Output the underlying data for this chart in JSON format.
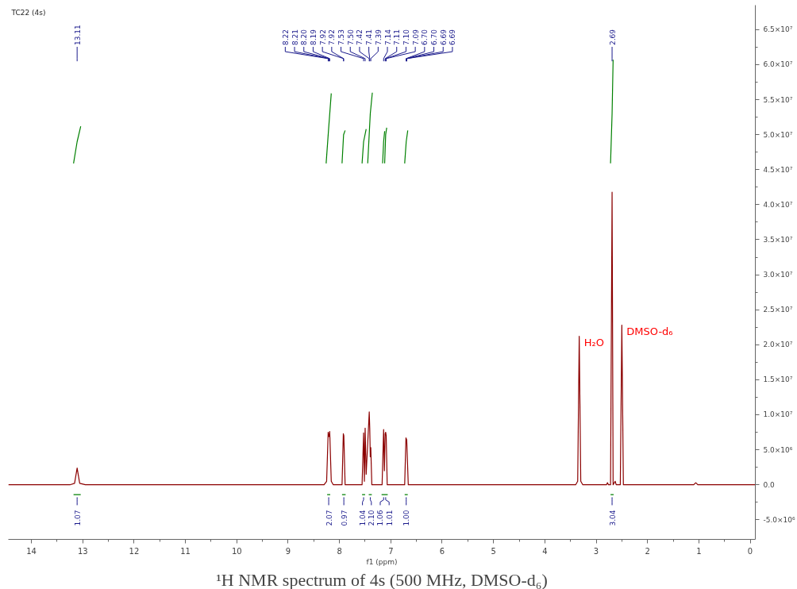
{
  "chart_data": {
    "type": "line",
    "title": "TC22 (4s)",
    "xlabel": "f1 (ppm)",
    "xlim": [
      14.45,
      -0.1
    ],
    "xticks": [
      14,
      13,
      12,
      11,
      10,
      9,
      8,
      7,
      6,
      5,
      4,
      3,
      2,
      1,
      0
    ],
    "ylim": [
      -7800000.0,
      68500000.0
    ],
    "yticks": [
      {
        "value": -5000000.0,
        "label": "-5.0×10⁶"
      },
      {
        "value": 0,
        "label": "0.0"
      },
      {
        "value": 5000000.0,
        "label": "5.0×10⁶"
      },
      {
        "value": 10000000.0,
        "label": "1.0×10⁷"
      },
      {
        "value": 15000000.0,
        "label": "1.5×10⁷"
      },
      {
        "value": 20000000.0,
        "label": "2.0×10⁷"
      },
      {
        "value": 25000000.0,
        "label": "2.5×10⁷"
      },
      {
        "value": 30000000.0,
        "label": "3.0×10⁷"
      },
      {
        "value": 35000000.0,
        "label": "3.5×10⁷"
      },
      {
        "value": 40000000.0,
        "label": "4.0×10⁷"
      },
      {
        "value": 45000000.0,
        "label": "4.5×10⁷"
      },
      {
        "value": 50000000.0,
        "label": "5.0×10⁷"
      },
      {
        "value": 55000000.0,
        "label": "5.5×10⁷"
      },
      {
        "value": 60000000.0,
        "label": "6.0×10⁷"
      },
      {
        "value": 65000000.0,
        "label": "6.5×10⁷"
      }
    ],
    "grid": false,
    "line_style": "solid",
    "series": [
      {
        "color": "#8b0000",
        "x": [
          14.45,
          13.25,
          13.16,
          13.11,
          13.06,
          12.95,
          8.3,
          8.25,
          8.22,
          8.21,
          8.2,
          8.19,
          8.16,
          8.12,
          7.95,
          7.925,
          7.915,
          7.89,
          7.56,
          7.53,
          7.515,
          7.5,
          7.48,
          7.42,
          7.41,
          7.4,
          7.39,
          7.37,
          7.17,
          7.14,
          7.125,
          7.11,
          7.1,
          7.09,
          7.07,
          6.73,
          6.705,
          6.7,
          6.695,
          6.69,
          6.66,
          3.4,
          3.36,
          3.33,
          3.3,
          3.26,
          2.8,
          2.78,
          2.76,
          2.72,
          2.69,
          2.67,
          2.63,
          2.61,
          2.53,
          2.5,
          2.47,
          2.4,
          1.1,
          1.06,
          1.02,
          -0.1
        ],
        "values": [
          0,
          0,
          200000.0,
          2400000.0,
          200000.0,
          0,
          0,
          500000.0,
          7500000.0,
          6900000.0,
          6900000.0,
          7600000.0,
          500000.0,
          0,
          0,
          7300000.0,
          7000000.0,
          0,
          0,
          7400000.0,
          500000.0,
          8100000.0,
          1500000.0,
          10400000.0,
          8000000.0,
          4000000.0,
          5300000.0,
          0,
          0,
          7900000.0,
          2000000.0,
          7300000.0,
          7500000.0,
          7000000.0,
          0,
          0,
          6700000.0,
          6600000.0,
          6500000.0,
          6400000.0,
          0,
          0,
          500000.0,
          21200000.0,
          500000.0,
          0,
          0,
          300000.0,
          0,
          0,
          41800000.0,
          0,
          500000.0,
          0,
          0,
          22800000.0,
          0,
          0,
          0,
          300000.0,
          0,
          0
        ]
      },
      {
        "color": "#008000",
        "x": [
          13.18,
          13.11,
          13.04,
          null,
          8.26,
          8.21,
          8.16,
          null,
          7.95,
          7.92,
          7.89,
          null,
          7.56,
          7.53,
          7.48,
          null,
          7.45,
          7.4,
          7.36,
          null,
          7.16,
          7.14,
          7.12,
          null,
          7.12,
          7.1,
          7.08,
          null,
          6.73,
          6.7,
          6.67,
          null,
          2.72,
          2.69,
          2.67
        ],
        "values": [
          45900000.0,
          49000000.0,
          51200000.0,
          null,
          45900000.0,
          51000000.0,
          55900000.0,
          null,
          45900000.0,
          50000000.0,
          50600000.0,
          null,
          45900000.0,
          49000000.0,
          50800000.0,
          null,
          45900000.0,
          53000000.0,
          56000000.0,
          null,
          45900000.0,
          49000000.0,
          50500000.0,
          null,
          45900000.0,
          50000000.0,
          51000000.0,
          null,
          45900000.0,
          49000000.0,
          50600000.0,
          null,
          45900000.0,
          53000000.0,
          60700000.0
        ]
      },
      {
        "color": "#008000",
        "x": [
          13.18,
          13.11,
          13.04,
          null,
          8.24,
          8.21,
          8.18,
          null,
          7.95,
          7.915,
          7.88,
          null,
          7.56,
          7.53,
          7.5,
          null,
          7.43,
          7.4,
          7.37,
          null,
          7.18,
          7.14,
          7.1,
          7.06,
          null,
          6.73,
          6.7,
          6.67,
          null,
          2.72,
          2.69,
          2.66
        ],
        "values": [
          -1400000.0,
          -1400000.0,
          -1400000.0,
          null,
          -1400000.0,
          -1400000.0,
          -1400000.0,
          null,
          -1400000.0,
          -1400000.0,
          -1400000.0,
          null,
          -1400000.0,
          -1400000.0,
          -1400000.0,
          null,
          -1400000.0,
          -1400000.0,
          -1400000.0,
          null,
          -1400000.0,
          -1400000.0,
          -1400000.0,
          -1400000.0,
          null,
          -1400000.0,
          -1400000.0,
          -1400000.0,
          null,
          -1400000.0,
          -1400000.0,
          -1400000.0
        ]
      }
    ],
    "annotations": [
      "13.11",
      "8.22",
      "8.21",
      "8.20",
      "8.19",
      "7.92",
      "7.92",
      "7.53",
      "7.50",
      "7.42",
      "7.41",
      "7.39",
      "7.14",
      "7.11",
      "7.10",
      "7.09",
      "6.70",
      "6.70",
      "6.69",
      "6.69",
      "2.69",
      {
        "text": "1.07",
        "x": 13.11,
        "y": -1400000.0
      },
      {
        "text": "2.07",
        "x": 8.21,
        "y": -1400000.0
      },
      {
        "text": "0.97",
        "x": 7.915,
        "y": -1400000.0
      },
      {
        "text": "1.04",
        "x": 7.53,
        "y": -1400000.0
      },
      {
        "text": "2.10",
        "x": 7.4,
        "y": -1400000.0
      },
      {
        "text": "1.06",
        "x": 7.14,
        "y": -1400000.0
      },
      {
        "text": "1.01",
        "x": 7.1,
        "y": -1400000.0
      },
      {
        "text": "1.00",
        "x": 6.7,
        "y": -1400000.0
      },
      {
        "text": "3.04",
        "x": 2.69,
        "y": -1400000.0
      },
      {
        "text": "H₂O",
        "x": 3.33,
        "y": 21200000.0
      },
      {
        "text": "DMSO-d₆",
        "x": 2.5,
        "y": 22800000.0
      },
      "¹H NMR spectrum of 4s (500 MHz, DMSO-d₆)"
    ]
  }
}
